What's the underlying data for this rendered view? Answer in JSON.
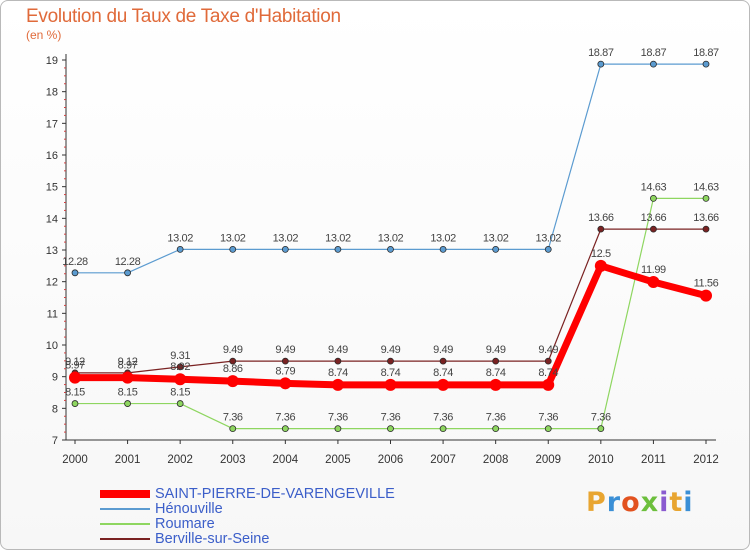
{
  "title": "Evolution du Taux de Taxe d'Habitation",
  "subtitle": "(en %)",
  "logo": {
    "text": "Proxiti",
    "colors": [
      "#e8a531",
      "#3a8fd6",
      "#e2521f",
      "#6cbf3c",
      "#8a5ad0",
      "#e8a531",
      "#3a8fd6"
    ]
  },
  "chart_data": {
    "type": "line",
    "title": "Evolution du Taux de Taxe d'Habitation",
    "ylabel": "(en %)",
    "xlabel": "",
    "ylim": [
      7,
      19
    ],
    "yticks": [
      7,
      8,
      9,
      10,
      11,
      12,
      13,
      14,
      15,
      16,
      17,
      18,
      19
    ],
    "grid": false,
    "legend_position": "bottom-left",
    "x": [
      "2000",
      "2001",
      "2002",
      "2003",
      "2004",
      "2005",
      "2006",
      "2007",
      "2008",
      "2009",
      "2010",
      "2011",
      "2012"
    ],
    "series": [
      {
        "name": "Hénouville",
        "color": "#5b9bd0",
        "values": [
          12.28,
          12.28,
          13.02,
          13.02,
          13.02,
          13.02,
          13.02,
          13.02,
          13.02,
          13.02,
          18.87,
          18.87,
          18.87
        ],
        "labels": [
          "12.28",
          "12.28",
          "13.02",
          "13.02",
          "13.02",
          "13.02",
          "13.02",
          "13.02",
          "13.02",
          "13.02",
          "18.87",
          "18.87",
          "18.87"
        ]
      },
      {
        "name": "Roumare",
        "color": "#8ed660",
        "values": [
          8.15,
          8.15,
          8.15,
          7.36,
          7.36,
          7.36,
          7.36,
          7.36,
          7.36,
          7.36,
          7.36,
          14.63,
          14.63
        ],
        "labels": [
          "8.15",
          "8.15",
          "8.15",
          "7.36",
          "7.36",
          "7.36",
          "7.36",
          "7.36",
          "7.36",
          "7.36",
          "7.36",
          "14.63",
          "14.63"
        ]
      },
      {
        "name": "Berville-sur-Seine",
        "color": "#7a2222",
        "values": [
          9.12,
          9.12,
          9.31,
          9.49,
          9.49,
          9.49,
          9.49,
          9.49,
          9.49,
          9.49,
          13.66,
          13.66,
          13.66
        ],
        "labels": [
          "9.12",
          "9.12",
          "9.31",
          "9.49",
          "9.49",
          "9.49",
          "9.49",
          "9.49",
          "9.49",
          "9.49",
          "13.66",
          "13.66",
          "13.66"
        ]
      },
      {
        "name": "SAINT-PIERRE-DE-VARENGEVILLE",
        "color": "#ff0000",
        "values": [
          8.97,
          8.97,
          8.92,
          8.86,
          8.79,
          8.74,
          8.74,
          8.74,
          8.74,
          8.74,
          12.5,
          11.99,
          11.56
        ],
        "labels": [
          "8.97",
          "8.97",
          "8.92",
          "8.86",
          "8.79",
          "8.74",
          "8.74",
          "8.74",
          "8.74",
          "8.74",
          "12.5",
          "11.99",
          "11.56"
        ]
      }
    ],
    "legend_order": [
      "SAINT-PIERRE-DE-VARENGEVILLE",
      "Hénouville",
      "Roumare",
      "Berville-sur-Seine"
    ]
  }
}
